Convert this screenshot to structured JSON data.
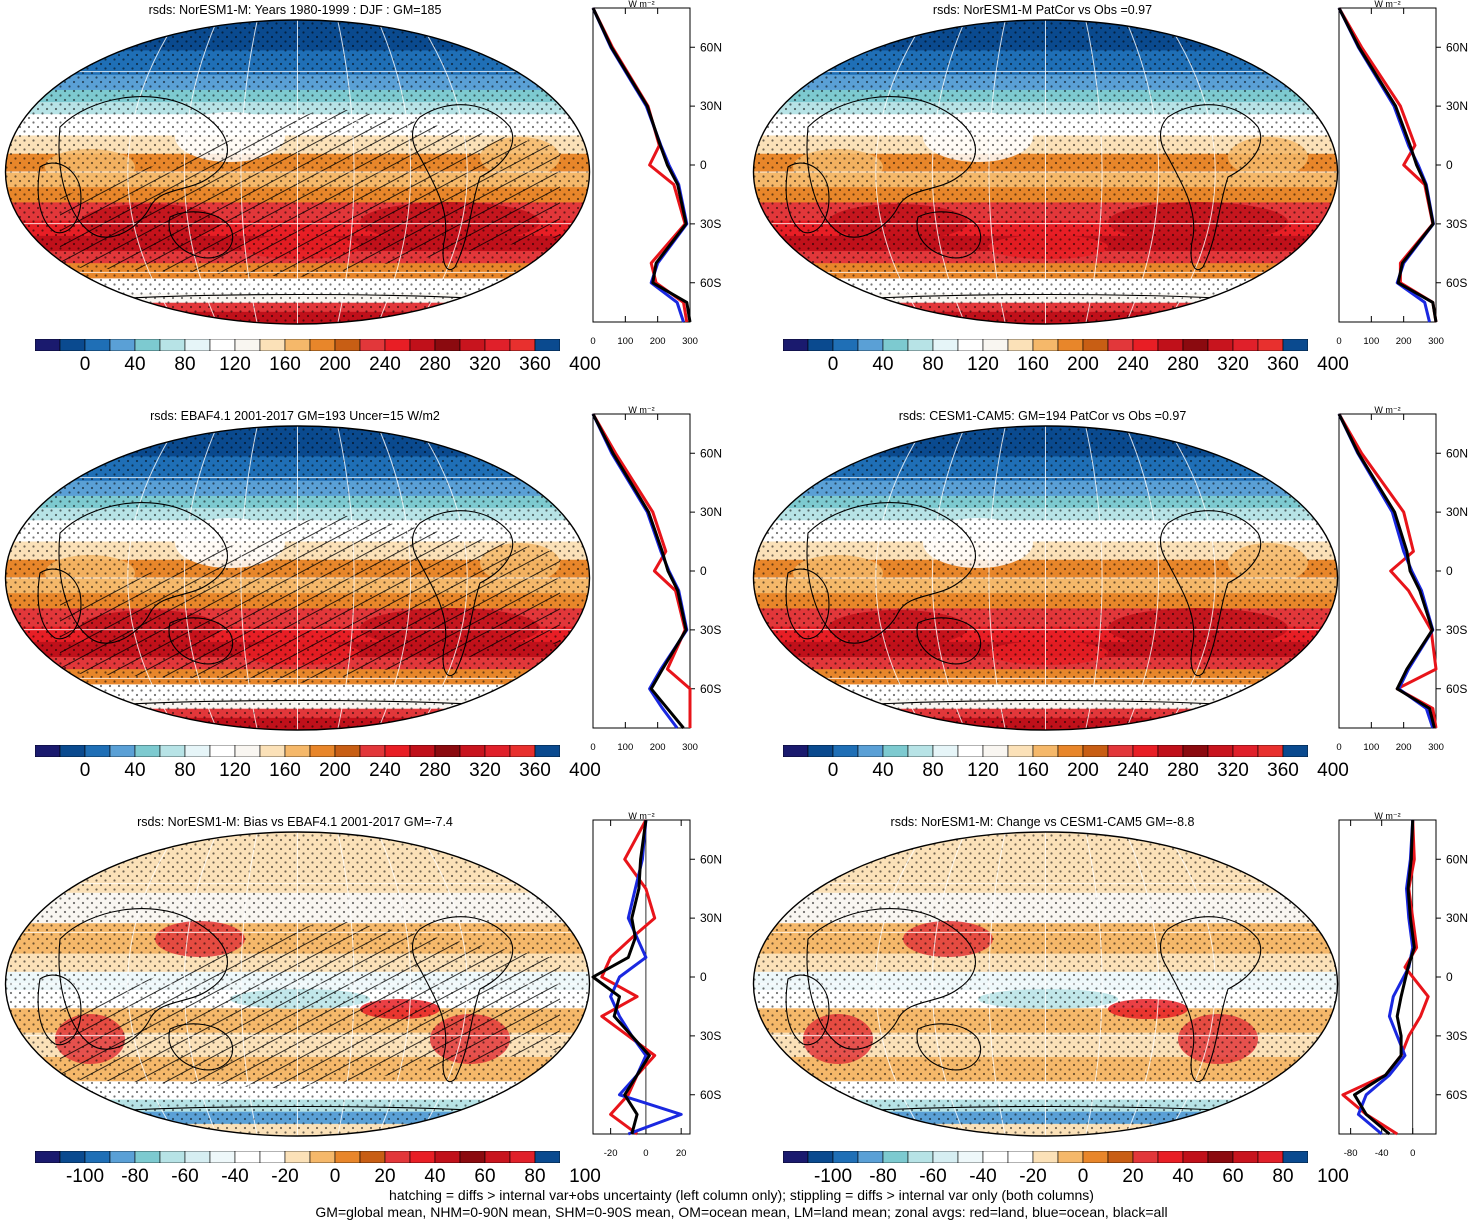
{
  "variable": "rsds",
  "units_label": "W m⁻²",
  "mean_scale": {
    "ticks": [
      "0",
      "40",
      "80",
      "120",
      "160",
      "200",
      "240",
      "280",
      "320",
      "360",
      "400"
    ],
    "colors": [
      "#1a1a6e",
      "#0a4a8f",
      "#1f6fb6",
      "#5aa0d6",
      "#7dcad0",
      "#b7e3e6",
      "#e6f5f8",
      "#ffffff",
      "#f9f6f1",
      "#fbe1b8",
      "#f5b86a",
      "#e8862a",
      "#c85e14",
      "#e2373a",
      "#e81e25",
      "#c0101a",
      "#8b0a0f",
      "#c8141e",
      "#e0202a",
      "#e8302e",
      "#0a4a8f"
    ]
  },
  "diff_scale": {
    "ticks": [
      "-100",
      "-80",
      "-60",
      "-40",
      "-20",
      "0",
      "20",
      "40",
      "60",
      "80",
      "100"
    ],
    "colors": [
      "#1a1a6e",
      "#0a4a8f",
      "#1f6fb6",
      "#5aa0d6",
      "#7dcad0",
      "#b7e3e6",
      "#d6eef2",
      "#eef8fa",
      "#ffffff",
      "#ffffff",
      "#fbe1b8",
      "#f5b86a",
      "#e8862a",
      "#c85e14",
      "#e2373a",
      "#e81e25",
      "#c0101a",
      "#8b0a0f",
      "#c8141e",
      "#e0202a",
      "#0a4a8f"
    ]
  },
  "lat_labels": [
    "60N",
    "30N",
    "0",
    "30S",
    "60S"
  ],
  "panels": [
    {
      "title": "rsds: NorESM1-M: Years 1980-1999 : DJF : GM=185",
      "kind": "mean",
      "hatch": true,
      "zonal_xticks": [
        "0",
        "100",
        "200",
        "300"
      ],
      "zonal_xlim": [
        0,
        300
      ]
    },
    {
      "title": "rsds: NorESM1-M PatCor vs Obs =0.97",
      "kind": "mean",
      "hatch": false,
      "zonal_xticks": [
        "0",
        "100",
        "200",
        "300"
      ],
      "zonal_xlim": [
        0,
        300
      ]
    },
    {
      "title": "rsds: EBAF4.1 2001-2017 GM=193 Uncer=15 W/m2",
      "kind": "mean",
      "hatch": true,
      "zonal_xticks": [
        "0",
        "100",
        "200",
        "300"
      ],
      "zonal_xlim": [
        0,
        300
      ]
    },
    {
      "title": "rsds: CESM1-CAM5: GM=194 PatCor vs Obs =0.97",
      "kind": "mean",
      "hatch": false,
      "zonal_xticks": [
        "0",
        "100",
        "200",
        "300"
      ],
      "zonal_xlim": [
        0,
        300
      ]
    },
    {
      "title": "rsds: NorESM1-M: Bias vs EBAF4.1 2001-2017 GM=-7.4",
      "kind": "diff",
      "hatch": true,
      "zonal_xticks": [
        "-20",
        "0",
        "20"
      ],
      "zonal_xlim": [
        -30,
        25
      ]
    },
    {
      "title": "rsds: NorESM1-M: Change vs CESM1-CAM5 GM=-8.8",
      "kind": "diff",
      "hatch": false,
      "zonal_xticks": [
        "-80",
        "-40",
        "0"
      ],
      "zonal_xlim": [
        -95,
        30
      ]
    }
  ],
  "footer": {
    "line1": "hatching = diffs > internal var+obs uncertainty (left column only); stippling = diffs > internal var only (both columns)",
    "line2": "GM=global mean, NHM=0-90N mean, SHM=0-90S mean, OM=ocean mean, LM=land mean; zonal avgs: red=land, blue=ocean, black=all"
  },
  "chart_data": [
    {
      "type": "line",
      "title": "rsds: NorESM1-M: Years 1980-1999 : DJF : GM=185",
      "xlabel": "W m⁻²",
      "ylabel": "",
      "xlim": [
        0,
        300
      ],
      "y": [
        80,
        60,
        30,
        10,
        0,
        -10,
        -30,
        -50,
        -60,
        -70,
        -80
      ],
      "series": [
        {
          "name": "red",
          "values": [
            0,
            60,
            170,
            205,
            175,
            250,
            285,
            180,
            195,
            280,
            290
          ]
        },
        {
          "name": "blue",
          "values": [
            0,
            55,
            165,
            210,
            235,
            265,
            290,
            200,
            180,
            260,
            280
          ]
        },
        {
          "name": "black",
          "values": [
            0,
            57,
            168,
            208,
            230,
            262,
            288,
            195,
            185,
            290,
            300
          ]
        }
      ]
    },
    {
      "type": "line",
      "title": "rsds: NorESM1-M PatCor vs Obs =0.97",
      "xlabel": "W m⁻²",
      "ylabel": "",
      "xlim": [
        0,
        300
      ],
      "y": [
        80,
        60,
        30,
        10,
        0,
        -10,
        -30,
        -50,
        -60,
        -70,
        -80
      ],
      "series": [
        {
          "name": "red",
          "values": [
            0,
            70,
            190,
            235,
            200,
            265,
            290,
            190,
            190,
            290,
            300
          ]
        },
        {
          "name": "blue",
          "values": [
            0,
            60,
            170,
            215,
            245,
            270,
            292,
            200,
            180,
            265,
            280
          ]
        },
        {
          "name": "black",
          "values": [
            0,
            62,
            175,
            220,
            240,
            268,
            291,
            196,
            183,
            290,
            300
          ]
        }
      ]
    },
    {
      "type": "line",
      "title": "rsds: EBAF4.1 2001-2017 GM=193 Uncer=15 W/m2",
      "xlabel": "W m⁻²",
      "ylabel": "",
      "xlim": [
        0,
        300
      ],
      "y": [
        80,
        60,
        30,
        10,
        0,
        -10,
        -30,
        -50,
        -60,
        -70,
        -80
      ],
      "series": [
        {
          "name": "red",
          "values": [
            0,
            70,
            185,
            225,
            190,
            255,
            285,
            230,
            300,
            300,
            300
          ]
        },
        {
          "name": "blue",
          "values": [
            0,
            58,
            168,
            210,
            235,
            265,
            290,
            210,
            175,
            215,
            260
          ]
        },
        {
          "name": "black",
          "values": [
            0,
            62,
            172,
            214,
            232,
            262,
            288,
            215,
            180,
            230,
            280
          ]
        }
      ]
    },
    {
      "type": "line",
      "title": "rsds: CESM1-CAM5: GM=194 PatCor vs Obs =0.97",
      "xlabel": "W m⁻²",
      "ylabel": "",
      "xlim": [
        0,
        300
      ],
      "y": [
        80,
        60,
        30,
        10,
        0,
        -10,
        -30,
        -50,
        -60,
        -70,
        -80
      ],
      "series": [
        {
          "name": "red",
          "values": [
            0,
            70,
            200,
            230,
            160,
            215,
            285,
            300,
            180,
            290,
            300
          ]
        },
        {
          "name": "blue",
          "values": [
            0,
            58,
            165,
            200,
            225,
            255,
            290,
            215,
            185,
            270,
            290
          ]
        },
        {
          "name": "black",
          "values": [
            0,
            60,
            172,
            210,
            220,
            250,
            289,
            210,
            180,
            280,
            295
          ]
        }
      ]
    },
    {
      "type": "line",
      "title": "rsds: NorESM1-M: Bias vs EBAF4.1 2001-2017 GM=-7.4",
      "xlabel": "W m⁻²",
      "ylabel": "",
      "xlim": [
        -30,
        25
      ],
      "y": [
        80,
        60,
        45,
        30,
        20,
        10,
        0,
        -10,
        -20,
        -30,
        -40,
        -50,
        -60,
        -70,
        -80
      ],
      "series": [
        {
          "name": "red",
          "values": [
            0,
            -12,
            0,
            5,
            -8,
            -20,
            -25,
            -5,
            -25,
            -10,
            5,
            -5,
            -10,
            -20,
            -5
          ]
        },
        {
          "name": "blue",
          "values": [
            0,
            -2,
            -6,
            -10,
            -5,
            0,
            -15,
            -20,
            -15,
            -8,
            0,
            -5,
            -15,
            20,
            -10
          ]
        },
        {
          "name": "black",
          "values": [
            0,
            -3,
            -4,
            -8,
            -6,
            -10,
            -30,
            -15,
            -18,
            -8,
            2,
            -5,
            -12,
            -5,
            -8
          ]
        }
      ]
    },
    {
      "type": "line",
      "title": "rsds: NorESM1-M: Change vs CESM1-CAM5 GM=-8.8",
      "xlabel": "W m⁻²",
      "ylabel": "",
      "xlim": [
        -95,
        30
      ],
      "y": [
        80,
        60,
        45,
        30,
        15,
        5,
        -10,
        -20,
        -30,
        -40,
        -50,
        -60,
        -70,
        -80
      ],
      "series": [
        {
          "name": "red",
          "values": [
            0,
            2,
            -5,
            0,
            5,
            -10,
            20,
            10,
            -5,
            -15,
            -35,
            -90,
            -60,
            -20
          ]
        },
        {
          "name": "blue",
          "values": [
            0,
            -3,
            -8,
            -5,
            0,
            -5,
            -25,
            -30,
            -20,
            -10,
            -30,
            -60,
            -70,
            -40
          ]
        },
        {
          "name": "black",
          "values": [
            0,
            -2,
            -6,
            -3,
            2,
            -6,
            -15,
            -20,
            -15,
            -15,
            -35,
            -75,
            -60,
            -30
          ]
        }
      ]
    }
  ]
}
